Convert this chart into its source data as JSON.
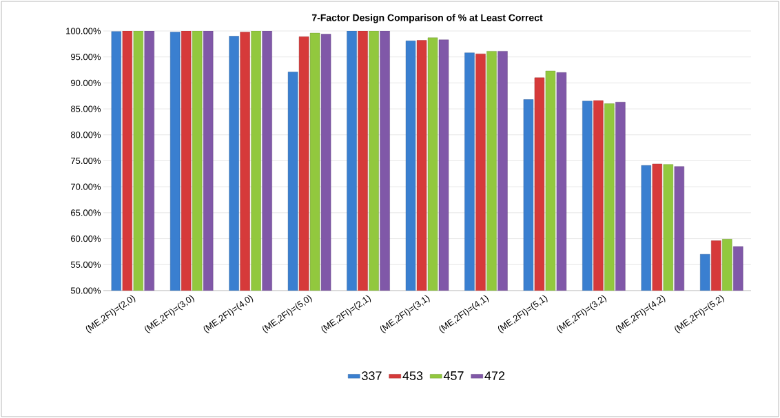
{
  "chart_data": {
    "type": "bar",
    "title": "7-Factor Design Comparison of % at Least Correct",
    "categories": [
      "(ME,2FI)=(2,0)",
      "(ME,2FI)=(3,0)",
      "(ME,2FI)=(4,0)",
      "(ME,2FI)=(5,0)",
      "(ME,2FI)=(2,1)",
      "(ME,2FI)=(3,1)",
      "(ME,2FI)=(4,1)",
      "(ME,2FI)=(5,1)",
      "(ME,2FI)=(3,2)",
      "(ME,2FI)=(4,2)",
      "(ME,2FI)=(5,2)"
    ],
    "series": [
      {
        "name": "337",
        "color": "#3a7fd0",
        "values": [
          99.9,
          99.8,
          99.0,
          92.1,
          100,
          98.1,
          95.8,
          86.8,
          86.5,
          74.1,
          57.0
        ]
      },
      {
        "name": "453",
        "color": "#d63a3a",
        "values": [
          100,
          100,
          99.8,
          98.9,
          100,
          98.2,
          95.6,
          91.0,
          86.6,
          74.4,
          59.6
        ]
      },
      {
        "name": "457",
        "color": "#92c83e",
        "values": [
          100,
          100,
          100,
          99.6,
          100,
          98.7,
          96.1,
          92.3,
          86.0,
          74.3,
          59.9
        ]
      },
      {
        "name": "472",
        "color": "#8058a8",
        "values": [
          100,
          100,
          100,
          99.4,
          100,
          98.3,
          96.1,
          92.0,
          86.3,
          73.9,
          58.5
        ]
      }
    ],
    "ylim": [
      50,
      100
    ],
    "yticks": [
      {
        "value": 50,
        "label": "50.00%"
      },
      {
        "value": 55,
        "label": "55.00%"
      },
      {
        "value": 60,
        "label": "60.00%"
      },
      {
        "value": 65,
        "label": "65.00%"
      },
      {
        "value": 70,
        "label": "70.00%"
      },
      {
        "value": 75,
        "label": "75.00%"
      },
      {
        "value": 80,
        "label": "80.00%"
      },
      {
        "value": 85,
        "label": "85.00%"
      },
      {
        "value": 90,
        "label": "90.00%"
      },
      {
        "value": 95,
        "label": "95.00%"
      },
      {
        "value": 100,
        "label": "100.00%"
      }
    ],
    "grid": "y",
    "legend": "bottom"
  }
}
